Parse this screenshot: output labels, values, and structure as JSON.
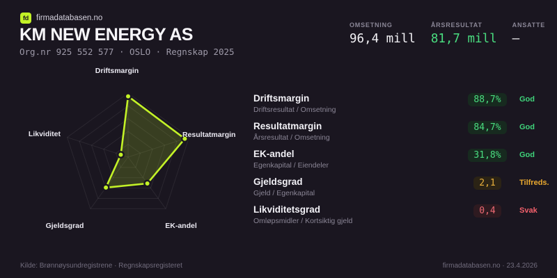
{
  "brand": {
    "logo_text": "fd",
    "site": "firmadatabasen.no"
  },
  "header": {
    "title": "KM NEW ENERGY AS",
    "subtitle": "Org.nr 925 552 577 · OSLO · Regnskap 2025",
    "stats": [
      {
        "label": "OMSETNING",
        "value": "96,4 mill",
        "color": "#f2f1f5"
      },
      {
        "label": "ÅRSRESULTAT",
        "value": "81,7 mill",
        "color": "#4ade80"
      },
      {
        "label": "ANSATTE",
        "value": "–",
        "color": "#f2f1f5"
      }
    ]
  },
  "chart_data": {
    "type": "radar",
    "axes": [
      "Driftsmargin",
      "Resultatmargin",
      "EK-andel",
      "Gjeldsgrad",
      "Likviditet"
    ],
    "values_normalized": [
      0.95,
      0.93,
      0.51,
      0.59,
      0.12
    ],
    "display_values": [
      "88,7%",
      "84,7%",
      "31,8%",
      "2,1",
      "0,4"
    ],
    "grid_levels": 5,
    "value_range": [
      0,
      1
    ],
    "grid": "on",
    "legend": "none",
    "stroke_color": "#c3f227",
    "fill_color": "rgba(195,242,39,0.18)"
  },
  "metrics": [
    {
      "title": "Driftsmargin",
      "formula": "Driftsresultat / Omsetning",
      "value": "88,7%",
      "status": "God",
      "tone": "good"
    },
    {
      "title": "Resultatmargin",
      "formula": "Årsresultat / Omsetning",
      "value": "84,7%",
      "status": "God",
      "tone": "good"
    },
    {
      "title": "EK-andel",
      "formula": "Egenkapital / Eiendeler",
      "value": "31,8%",
      "status": "God",
      "tone": "good"
    },
    {
      "title": "Gjeldsgrad",
      "formula": "Gjeld / Egenkapital",
      "value": "2,1",
      "status": "Tilfreds.",
      "tone": "warn"
    },
    {
      "title": "Likviditetsgrad",
      "formula": "Omløpsmidler / Kortsiktig gjeld",
      "value": "0,4",
      "status": "Svak",
      "tone": "bad"
    }
  ],
  "footer": {
    "left": "Kilde: Brønnøysundregistrene · Regnskapsregisteret",
    "right": "firmadatabasen.no · 23.4.2026"
  },
  "colors": {
    "background": "#1a1620",
    "accent_lime": "#c3f227",
    "positive_green": "#4ade80",
    "warning_amber": "#ecb13c",
    "negative_red": "#ef6a74"
  }
}
